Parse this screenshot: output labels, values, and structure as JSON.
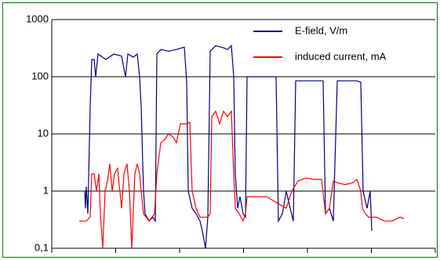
{
  "chart_data": {
    "type": "line",
    "log_scale": true,
    "grid": true,
    "legend": "top-right",
    "xlim": [
      0,
      489
    ],
    "xticks": [
      0,
      81.5,
      163,
      244.5,
      326,
      407.5,
      489
    ],
    "ylim": [
      0.1,
      1000
    ],
    "yticks": [
      {
        "value": 0.1,
        "label": "0,1"
      },
      1,
      10,
      100,
      1000
    ],
    "series": [
      {
        "name": "E-field, V/m",
        "color": "#000080",
        "x": [
          42,
          43,
          44,
          46,
          49,
          51,
          54,
          56,
          59,
          69,
          79,
          89,
          94,
          97,
          104,
          109,
          112,
          114,
          117,
          119,
          124,
          129,
          132,
          134,
          139,
          149,
          159,
          169,
          172,
          174,
          179,
          184,
          189,
          192,
          196,
          199,
          202,
          209,
          219,
          224,
          229,
          232,
          234,
          237,
          240,
          244,
          247,
          249,
          259,
          274,
          286,
          289,
          294,
          299,
          304,
          308,
          311,
          324,
          334,
          346,
          349,
          354,
          359,
          364,
          379,
          389,
          394,
          397,
          402,
          406,
          408
        ],
        "values": [
          1,
          0.5,
          1.2,
          0.4,
          30,
          200,
          200,
          100,
          250,
          200,
          250,
          230,
          100,
          250,
          220,
          250,
          100,
          30,
          1,
          0.4,
          0.3,
          0.35,
          0.3,
          250,
          300,
          280,
          300,
          330,
          80,
          1,
          0.5,
          0.4,
          0.3,
          0.2,
          0.1,
          0.35,
          280,
          350,
          320,
          300,
          350,
          100,
          2,
          0.5,
          0.8,
          0.4,
          0.35,
          100,
          100,
          100,
          100,
          0.3,
          0.4,
          1,
          0.5,
          0.3,
          85,
          85,
          85,
          85,
          0.4,
          0.5,
          0.3,
          85,
          85,
          85,
          80,
          1,
          0.5,
          1,
          0.2
        ]
      },
      {
        "name": "induced current, mA",
        "color": "#ff0000",
        "x": [
          35,
          44,
          49,
          51,
          54,
          57,
          60,
          62,
          65,
          68,
          71,
          74,
          77,
          80,
          84,
          89,
          92,
          96,
          99,
          102,
          106,
          109,
          112,
          114,
          117,
          124,
          131,
          134,
          139,
          144,
          149,
          154,
          159,
          164,
          172,
          176,
          179,
          184,
          189,
          199,
          202,
          204,
          209,
          214,
          219,
          224,
          229,
          232,
          234,
          239,
          244,
          247,
          249,
          259,
          274,
          289,
          299,
          306,
          314,
          324,
          334,
          344,
          349,
          354,
          359,
          364,
          374,
          384,
          389,
          394,
          396,
          400,
          404,
          414,
          424,
          434,
          444,
          449
        ],
        "values": [
          0.3,
          0.3,
          0.35,
          2,
          2,
          1,
          2,
          0.4,
          0.1,
          1,
          1.5,
          3,
          1,
          2,
          2.5,
          0.5,
          2,
          3,
          1,
          0.1,
          2,
          3,
          2,
          1,
          0.4,
          0.3,
          0.4,
          2,
          7,
          8,
          10,
          9,
          7,
          15,
          15,
          16,
          1,
          0.5,
          0.35,
          0.35,
          0.4,
          20,
          25,
          15,
          25,
          20,
          25,
          2,
          0.5,
          0.4,
          0.3,
          0.4,
          0.8,
          0.8,
          0.8,
          0.6,
          0.5,
          1,
          1.5,
          1.7,
          1.6,
          1.6,
          0.4,
          0.5,
          1.5,
          1.4,
          1.3,
          1.4,
          1.6,
          1,
          0.5,
          0.4,
          0.35,
          0.35,
          0.3,
          0.3,
          0.35,
          0.33
        ]
      }
    ]
  }
}
